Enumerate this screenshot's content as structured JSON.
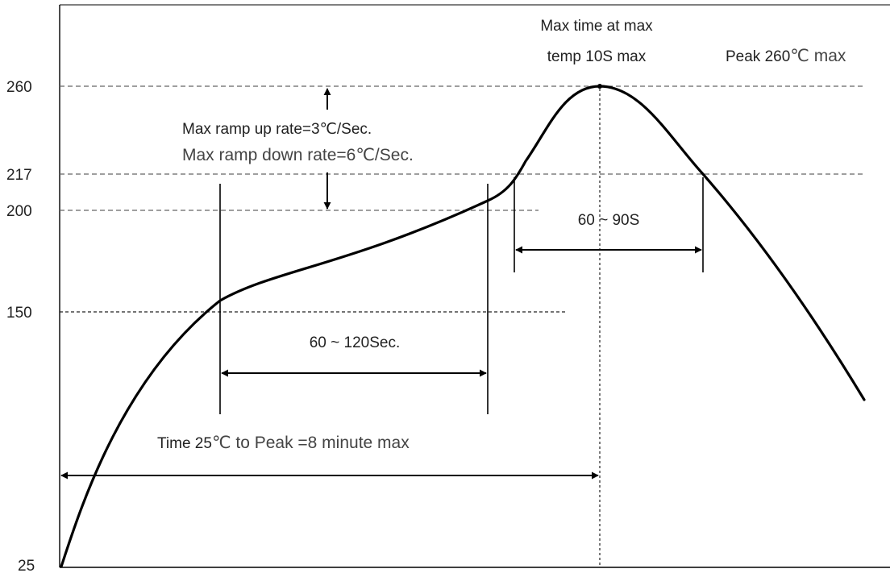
{
  "chart_data": {
    "type": "line",
    "y_ticks": [
      "260",
      "217",
      "200",
      "150",
      "25"
    ],
    "series_curve": [
      [
        0,
        25
      ],
      [
        20,
        88
      ],
      [
        40,
        122
      ],
      [
        60,
        140
      ],
      [
        80,
        150
      ],
      [
        100,
        155
      ],
      [
        130,
        160
      ],
      [
        160,
        168
      ],
      [
        190,
        180
      ],
      [
        210,
        193
      ],
      [
        230,
        205
      ],
      [
        240,
        219
      ],
      [
        255,
        240
      ],
      [
        275,
        258
      ],
      [
        285,
        260
      ],
      [
        300,
        255
      ],
      [
        320,
        238
      ],
      [
        340,
        217
      ],
      [
        360,
        195
      ],
      [
        390,
        160
      ],
      [
        420,
        122
      ],
      [
        450,
        91
      ]
    ],
    "peak_marker": "260",
    "annotations": {
      "max_time_line1": "Max time at max",
      "max_time_line2": "temp 10S max",
      "peak_label_bold": "Peak 260",
      "peak_label_unit": "℃ max",
      "ramp_up": "Max ramp up rate=3℃/Sec.",
      "ramp_down": "Max ramp down rate=6℃/Sec.",
      "above_217": "60 ~ 90S",
      "soak": "60 ~ 120Sec.",
      "time_to_peak_bold": "Time 25",
      "time_to_peak_rest": "℃ to Peak =8 minute max"
    },
    "line_color": "#000000",
    "guide_color": "#555555"
  }
}
